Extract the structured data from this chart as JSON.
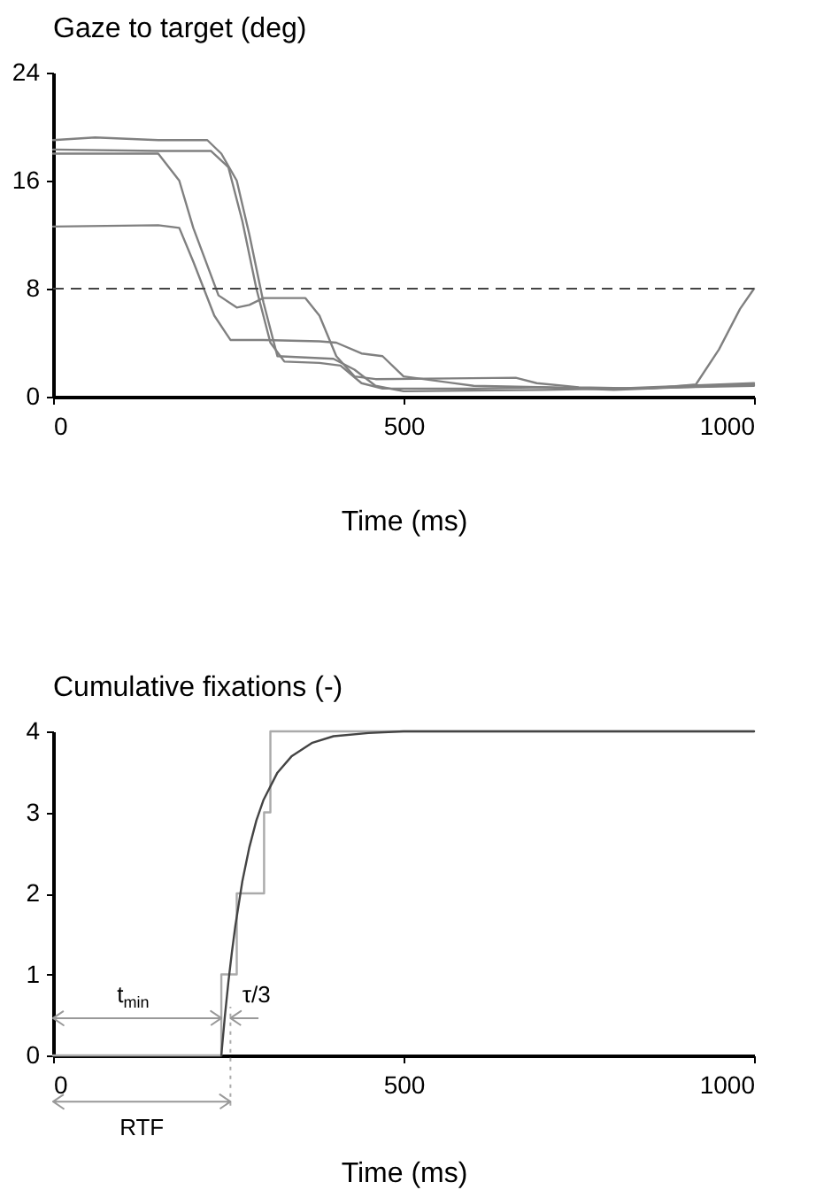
{
  "chart_data": [
    {
      "type": "line",
      "title": "Gaze to target   (deg)",
      "xlabel": "Time   (ms)",
      "xlim": [
        0,
        1000
      ],
      "xticks": [
        0,
        500,
        1000
      ],
      "ylim": [
        0,
        24
      ],
      "yticks": [
        0,
        8,
        16,
        24
      ],
      "marker": "none",
      "series": [
        {
          "color": "#808080",
          "x": [
            0,
            60,
            150,
            220,
            240,
            262,
            280,
            300,
            320,
            400,
            430,
            460,
            500,
            700,
            800,
            900,
            1000
          ],
          "values": [
            19.0,
            19.2,
            19.0,
            19.0,
            18.0,
            16.0,
            12.0,
            7.0,
            3.0,
            2.8,
            2.0,
            0.8,
            0.4,
            0.5,
            0.6,
            0.7,
            0.9
          ]
        },
        {
          "color": "#808080",
          "x": [
            0,
            150,
            225,
            250,
            270,
            290,
            310,
            330,
            380,
            410,
            440,
            470,
            600,
            700,
            800,
            900,
            1000
          ],
          "values": [
            18.3,
            18.2,
            18.2,
            17.0,
            13.0,
            8.0,
            4.0,
            2.6,
            2.5,
            2.3,
            1.0,
            0.6,
            0.6,
            0.7,
            0.5,
            0.7,
            0.8
          ]
        },
        {
          "color": "#808080",
          "x": [
            0,
            150,
            180,
            200,
            236,
            262,
            280,
            300,
            360,
            380,
            404,
            430,
            460,
            660,
            690,
            750,
            850,
            917,
            950,
            980,
            1000
          ],
          "values": [
            18.0,
            18.0,
            16.0,
            12.5,
            7.5,
            6.6,
            6.8,
            7.3,
            7.3,
            6.0,
            3.0,
            1.5,
            1.3,
            1.4,
            1.0,
            0.7,
            0.6,
            0.9,
            3.5,
            6.5,
            8.0
          ]
        },
        {
          "color": "#808080",
          "x": [
            0,
            150,
            180,
            200,
            230,
            253,
            300,
            380,
            404,
            440,
            470,
            500,
            600,
            800,
            1000
          ],
          "values": [
            12.6,
            12.7,
            12.5,
            10.0,
            6.0,
            4.2,
            4.2,
            4.1,
            4.0,
            3.2,
            3.0,
            1.5,
            0.8,
            0.6,
            1.0
          ]
        }
      ],
      "ref_lines": [
        {
          "axis": "y",
          "value": 8,
          "color": "#444444",
          "line_style": "dashed"
        }
      ]
    },
    {
      "type": "line",
      "title": "Cumulative fixations   (-)",
      "xlabel": "Time   (ms)",
      "xlim": [
        0,
        1000
      ],
      "xticks": [
        0,
        500,
        1000
      ],
      "ylim": [
        0,
        4
      ],
      "yticks": [
        0,
        1,
        2,
        3,
        4
      ],
      "marker": "none",
      "series": [
        {
          "type": "step",
          "color": "#aaaaaa",
          "x": [
            0,
            240,
            262,
            301,
            310,
            1000
          ],
          "values": [
            0,
            1,
            2,
            3,
            4,
            4
          ]
        },
        {
          "type": "line",
          "color": "#444444",
          "x": [
            240,
            245,
            250,
            255,
            260,
            270,
            280,
            290,
            300,
            320,
            340,
            370,
            400,
            450,
            500,
            1000
          ],
          "values": [
            0,
            0.48,
            0.9,
            1.27,
            1.6,
            2.15,
            2.57,
            2.9,
            3.15,
            3.49,
            3.69,
            3.86,
            3.94,
            3.98,
            4.0,
            4.0
          ]
        }
      ],
      "ref_lines": [
        {
          "axis": "x",
          "value": 253,
          "color": "#aaaaaa",
          "line_style": "dotted"
        }
      ],
      "annotations": [
        "t$_{min}$",
        "τ/3",
        "RTF"
      ]
    }
  ]
}
